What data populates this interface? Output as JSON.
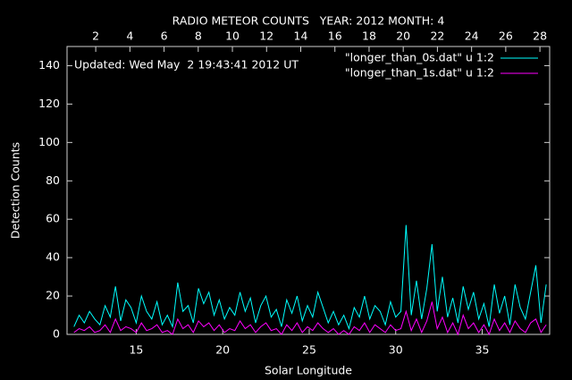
{
  "chart_data": {
    "type": "line",
    "title": "RADIO METEOR COUNTS   YEAR: 2012 MONTH: 4",
    "annotation": "Updated: Wed May  2 19:43:41 2012 UT",
    "x_label": "Solar Longitude",
    "y_label": "Detection Counts",
    "x": [
      11.4,
      11.7,
      12.0,
      12.3,
      12.6,
      12.9,
      13.2,
      13.5,
      13.8,
      14.1,
      14.4,
      14.7,
      15.0,
      15.3,
      15.6,
      15.9,
      16.2,
      16.5,
      16.8,
      17.1,
      17.4,
      17.7,
      18.0,
      18.3,
      18.6,
      18.9,
      19.2,
      19.5,
      19.8,
      20.1,
      20.4,
      20.7,
      21.0,
      21.3,
      21.6,
      21.9,
      22.2,
      22.5,
      22.8,
      23.1,
      23.4,
      23.7,
      24.0,
      24.3,
      24.6,
      24.9,
      25.2,
      25.5,
      25.8,
      26.1,
      26.4,
      26.7,
      27.0,
      27.3,
      27.6,
      27.9,
      28.2,
      28.5,
      28.8,
      29.1,
      29.4,
      29.7,
      30.0,
      30.3,
      30.6,
      30.9,
      31.2,
      31.5,
      31.8,
      32.1,
      32.4,
      32.7,
      33.0,
      33.3,
      33.6,
      33.9,
      34.2,
      34.5,
      34.8,
      35.1,
      35.4,
      35.7,
      36.0,
      36.3,
      36.6,
      36.9,
      37.2,
      37.5,
      37.8,
      38.1,
      38.4,
      38.7
    ],
    "series": [
      {
        "name": "\"longer_than_0s.dat\" u 1:2",
        "color": "#00ffff",
        "values": [
          4,
          10,
          6,
          12,
          8,
          5,
          15,
          9,
          25,
          7,
          18,
          14,
          6,
          20,
          12,
          8,
          17,
          5,
          10,
          4,
          27,
          12,
          15,
          6,
          24,
          16,
          22,
          10,
          18,
          8,
          14,
          10,
          22,
          12,
          19,
          6,
          15,
          20,
          9,
          13,
          4,
          18,
          11,
          20,
          7,
          15,
          9,
          22,
          14,
          6,
          12,
          5,
          10,
          3,
          14,
          9,
          20,
          8,
          15,
          12,
          5,
          17,
          9,
          12,
          57,
          10,
          28,
          8,
          24,
          47,
          12,
          30,
          9,
          19,
          6,
          25,
          13,
          22,
          8,
          16,
          4,
          26,
          11,
          20,
          5,
          26,
          14,
          8,
          22,
          36,
          6,
          26
        ]
      },
      {
        "name": "\"longer_than_1s.dat\" u 1:2",
        "color": "#ff00ff",
        "values": [
          1,
          3,
          2,
          4,
          1,
          2,
          5,
          1,
          8,
          2,
          4,
          3,
          1,
          6,
          2,
          3,
          5,
          1,
          2,
          0,
          8,
          3,
          5,
          1,
          7,
          4,
          6,
          2,
          5,
          1,
          3,
          2,
          7,
          3,
          5,
          1,
          4,
          6,
          2,
          3,
          0,
          5,
          2,
          6,
          1,
          4,
          2,
          6,
          3,
          1,
          3,
          0,
          2,
          0,
          4,
          2,
          6,
          1,
          5,
          3,
          1,
          5,
          2,
          3,
          12,
          2,
          8,
          1,
          7,
          17,
          3,
          9,
          1,
          6,
          0,
          10,
          3,
          6,
          1,
          5,
          0,
          8,
          2,
          6,
          1,
          7,
          3,
          1,
          6,
          8,
          1,
          5
        ]
      }
    ],
    "xlim": [
      11,
      38.9
    ],
    "xticks": [
      15,
      20,
      25,
      30,
      35
    ],
    "x2lim": [
      0.32,
      28.57
    ],
    "x2ticks": [
      2,
      4,
      6,
      8,
      10,
      12,
      14,
      16,
      18,
      20,
      22,
      24,
      26,
      28
    ],
    "ylim": [
      0,
      150
    ],
    "yticks": [
      0,
      20,
      40,
      60,
      80,
      100,
      120,
      140
    ],
    "legend": "top-right"
  }
}
